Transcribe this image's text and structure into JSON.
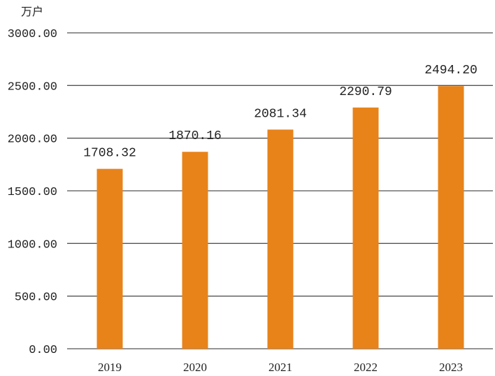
{
  "chart_data": {
    "type": "bar",
    "unit_label": "万户",
    "categories": [
      "2019",
      "2020",
      "2021",
      "2022",
      "2023"
    ],
    "values": [
      1708.32,
      1870.16,
      2081.34,
      2290.79,
      2494.2
    ],
    "data_labels": [
      "1708.32",
      "1870.16",
      "2081.34",
      "2290.79",
      "2494.20"
    ],
    "y_ticks": [
      0,
      500,
      1000,
      1500,
      2000,
      2500,
      3000
    ],
    "y_tick_labels": [
      "0.00",
      "500.00",
      "1000.00",
      "1500.00",
      "2000.00",
      "2500.00",
      "3000.00"
    ],
    "ylim": [
      0,
      3000
    ],
    "grid": true,
    "legend": "none",
    "colors": {
      "bar": "#E8831A",
      "grid": "#555555",
      "text": "#222222"
    }
  }
}
